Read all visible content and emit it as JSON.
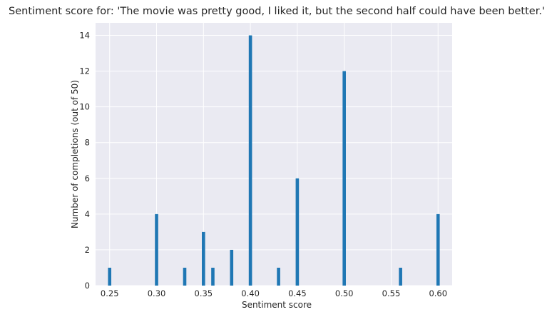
{
  "chart_data": {
    "type": "bar",
    "title": "Sentiment score for: 'The movie was pretty good, I liked it, but the second half could have been better.'",
    "xlabel": "Sentiment score",
    "ylabel": "Number of completions (out of 50)",
    "x": [
      0.25,
      0.3,
      0.33,
      0.35,
      0.36,
      0.38,
      0.4,
      0.43,
      0.45,
      0.5,
      0.56,
      0.6
    ],
    "values": [
      1,
      4,
      1,
      3,
      1,
      2,
      14,
      1,
      6,
      12,
      1,
      4
    ],
    "xlim": [
      0.235,
      0.615
    ],
    "ylim": [
      0,
      14.7
    ],
    "xticks": [
      0.25,
      0.3,
      0.35,
      0.4,
      0.45,
      0.5,
      0.55,
      0.6
    ],
    "xtick_labels": [
      "0.25",
      "0.30",
      "0.35",
      "0.40",
      "0.45",
      "0.50",
      "0.55",
      "0.60"
    ],
    "yticks": [
      0,
      2,
      4,
      6,
      8,
      10,
      12,
      14
    ],
    "ytick_labels": [
      "0",
      "2",
      "4",
      "6",
      "8",
      "10",
      "12",
      "14"
    ],
    "bar_width": 0.0035,
    "grid": true,
    "bar_color": "#1f77b4",
    "background_color": "#eaeaf2",
    "grid_color": "#ffffff"
  }
}
